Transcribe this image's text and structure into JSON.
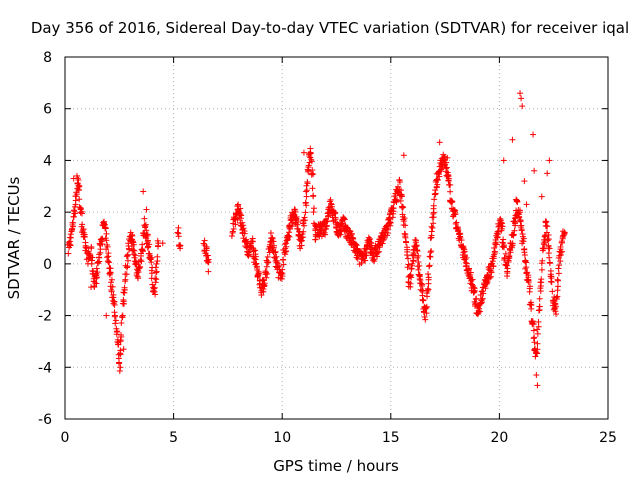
{
  "chart_data": {
    "type": "scatter",
    "title": "Day 356 of 2016, Sidereal Day-to-day VTEC variation (SDTVAR) for receiver iqal",
    "xlabel": "GPS time / hours",
    "ylabel": "SDTVAR / TECUs",
    "xlim": [
      0,
      25
    ],
    "ylim": [
      -6,
      8
    ],
    "xticks": [
      0,
      5,
      10,
      15,
      20,
      25
    ],
    "yticks": [
      -6,
      -4,
      -2,
      0,
      2,
      4,
      6,
      8
    ],
    "grid": true,
    "marker": "+",
    "color": "#ff0000",
    "series": [
      {
        "name": "SDTVAR",
        "trace": [
          [
            0.15,
            0.5
          ],
          [
            0.3,
            1.2
          ],
          [
            0.45,
            2.2
          ],
          [
            0.6,
            3.3
          ],
          [
            0.75,
            1.8
          ],
          [
            0.9,
            0.9
          ],
          [
            1.05,
            0.2
          ],
          [
            1.2,
            0.4
          ],
          [
            1.35,
            -0.8
          ],
          [
            1.5,
            -0.2
          ],
          [
            1.65,
            0.8
          ],
          [
            1.8,
            1.6
          ],
          [
            1.95,
            0.4
          ],
          [
            2.1,
            -0.5
          ],
          [
            2.25,
            -1.5
          ],
          [
            2.4,
            -2.8
          ],
          [
            2.5,
            -3.9
          ],
          [
            2.6,
            -2.5
          ],
          [
            2.75,
            -0.8
          ],
          [
            2.9,
            0.5
          ],
          [
            3.05,
            1.1
          ],
          [
            3.2,
            0.3
          ],
          [
            3.35,
            -0.4
          ],
          [
            3.5,
            0.2
          ],
          [
            3.65,
            1.5
          ],
          [
            3.8,
            0.9
          ],
          [
            3.95,
            0.1
          ],
          [
            4.1,
            -1.2
          ],
          [
            4.3,
            0.8
          ],
          [
            5.2,
            1.3
          ],
          [
            5.3,
            0.6
          ],
          [
            6.4,
            0.8
          ],
          [
            6.6,
            0.2
          ],
          [
            6.6,
            -0.3
          ],
          [
            7.7,
            1.2
          ],
          [
            7.85,
            1.8
          ],
          [
            8.0,
            2.2
          ],
          [
            8.15,
            1.5
          ],
          [
            8.3,
            1.0
          ],
          [
            8.45,
            0.3
          ],
          [
            8.6,
            0.9
          ],
          [
            8.75,
            0.2
          ],
          [
            8.9,
            -0.4
          ],
          [
            9.05,
            -1.0
          ],
          [
            9.2,
            -0.6
          ],
          [
            9.35,
            0.2
          ],
          [
            9.5,
            1.0
          ],
          [
            9.65,
            0.4
          ],
          [
            9.8,
            -0.2
          ],
          [
            9.95,
            -0.6
          ],
          [
            10.1,
            0.5
          ],
          [
            10.25,
            1.0
          ],
          [
            10.4,
            1.6
          ],
          [
            10.55,
            2.0
          ],
          [
            10.7,
            1.4
          ],
          [
            10.85,
            0.8
          ],
          [
            11.0,
            1.5
          ],
          [
            11.1,
            2.6
          ],
          [
            11.2,
            3.6
          ],
          [
            11.3,
            4.5
          ],
          [
            11.4,
            3.2
          ],
          [
            11.5,
            1.2
          ],
          [
            12.0,
            1.4
          ],
          [
            12.2,
            2.3
          ],
          [
            12.4,
            1.8
          ],
          [
            12.6,
            1.2
          ],
          [
            12.8,
            1.6
          ],
          [
            13.0,
            1.2
          ],
          [
            13.2,
            0.9
          ],
          [
            13.4,
            0.5
          ],
          [
            13.6,
            0.2
          ],
          [
            13.8,
            0.4
          ],
          [
            14.0,
            0.8
          ],
          [
            14.2,
            0.3
          ],
          [
            14.4,
            0.6
          ],
          [
            14.6,
            1.0
          ],
          [
            14.8,
            1.3
          ],
          [
            15.0,
            1.8
          ],
          [
            15.2,
            2.5
          ],
          [
            15.4,
            3.0
          ],
          [
            15.55,
            2.2
          ],
          [
            15.7,
            1.0
          ],
          [
            15.85,
            -0.8
          ],
          [
            16.0,
            0.2
          ],
          [
            16.15,
            0.8
          ],
          [
            16.3,
            -0.3
          ],
          [
            16.45,
            -1.2
          ],
          [
            16.6,
            -2.0
          ],
          [
            16.75,
            -0.4
          ],
          [
            16.9,
            1.4
          ],
          [
            17.05,
            2.8
          ],
          [
            17.2,
            3.5
          ],
          [
            17.35,
            3.9
          ],
          [
            17.5,
            4.0
          ],
          [
            17.65,
            3.2
          ],
          [
            17.8,
            2.2
          ],
          [
            17.95,
            1.8
          ],
          [
            18.1,
            1.2
          ],
          [
            18.25,
            0.7
          ],
          [
            18.4,
            0.3
          ],
          [
            18.55,
            -0.2
          ],
          [
            18.7,
            -0.6
          ],
          [
            18.85,
            -1.2
          ],
          [
            19.0,
            -1.9
          ],
          [
            19.15,
            -1.5
          ],
          [
            19.3,
            -0.8
          ],
          [
            19.45,
            -0.5
          ],
          [
            19.6,
            -0.2
          ],
          [
            19.75,
            0.3
          ],
          [
            19.9,
            1.2
          ],
          [
            20.05,
            1.8
          ],
          [
            20.2,
            0.6
          ],
          [
            20.35,
            -0.2
          ],
          [
            20.5,
            0.5
          ],
          [
            20.65,
            1.3
          ],
          [
            20.8,
            2.3
          ],
          [
            20.95,
            1.8
          ],
          [
            21.1,
            0.8
          ],
          [
            21.25,
            -0.2
          ],
          [
            21.4,
            -1.2
          ],
          [
            21.55,
            -2.5
          ],
          [
            21.7,
            -3.6
          ],
          [
            21.85,
            -1.5
          ],
          [
            22.0,
            0.5
          ],
          [
            22.15,
            1.5
          ],
          [
            22.3,
            0.6
          ],
          [
            22.45,
            -1.2
          ],
          [
            22.6,
            -1.9
          ],
          [
            22.75,
            0.2
          ],
          [
            22.9,
            0.9
          ],
          [
            23.0,
            1.2
          ]
        ],
        "outliers": [
          [
            0.4,
            3.3
          ],
          [
            0.55,
            3.4
          ],
          [
            1.2,
            -0.9
          ],
          [
            1.9,
            -2.0
          ],
          [
            2.55,
            -4.0
          ],
          [
            2.7,
            -3.3
          ],
          [
            3.6,
            2.8
          ],
          [
            3.75,
            2.1
          ],
          [
            4.5,
            0.8
          ],
          [
            11.0,
            4.3
          ],
          [
            15.6,
            4.2
          ],
          [
            17.25,
            4.7
          ],
          [
            17.6,
            4.1
          ],
          [
            20.2,
            4.0
          ],
          [
            20.6,
            4.8
          ],
          [
            20.75,
            1.8
          ],
          [
            20.95,
            6.6
          ],
          [
            21.0,
            6.4
          ],
          [
            21.05,
            6.1
          ],
          [
            21.15,
            3.2
          ],
          [
            21.25,
            2.3
          ],
          [
            21.55,
            5.0
          ],
          [
            21.6,
            3.6
          ],
          [
            21.7,
            -4.3
          ],
          [
            21.75,
            -4.7
          ],
          [
            21.95,
            2.6
          ],
          [
            22.2,
            3.5
          ],
          [
            22.3,
            4.0
          ]
        ]
      }
    ]
  }
}
